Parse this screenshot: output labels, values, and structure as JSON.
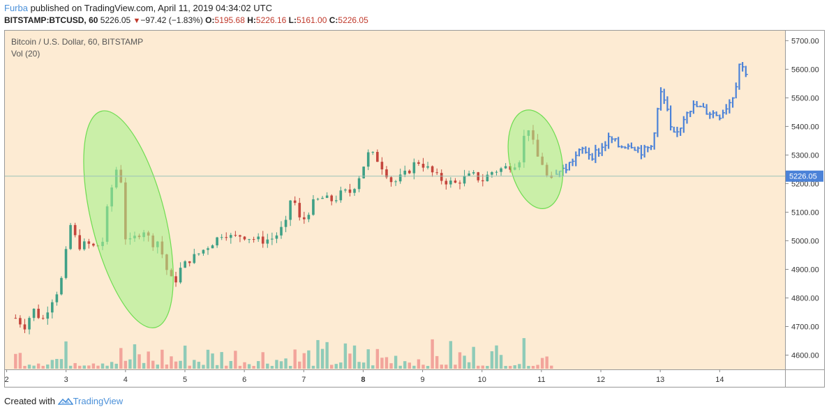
{
  "header": {
    "author": "Furba",
    "published_text": " published on TradingView.com, April 11, 2019 04:34:02 UTC",
    "symbol": "BITSTAMP:BTCUSD, 60",
    "last": "5226.05",
    "change": "−97.42 (−1.83%)",
    "o_label": "O:",
    "o_value": "5195.68",
    "h_label": "H:",
    "h_value": "5226.16",
    "l_label": "L:",
    "l_value": "5161.00",
    "c_label": "C:",
    "c_value": "5226.05",
    "down_glyph": "▼"
  },
  "legend": {
    "series_title": "Bitcoin / U.S. Dollar, 60, BITSTAMP",
    "volume_title": "Vol (20)"
  },
  "footer": {
    "created_with": "Created with ",
    "brand": "TradingView"
  },
  "colors": {
    "background": "#fdebd3",
    "up": "#3fa086",
    "down": "#c4453c",
    "vol_up": "#8fcbb8",
    "vol_down": "#f2a49b",
    "projection": "#4b82d8",
    "highlight_fill": "#a8f28c",
    "highlight_stroke": "#6fdc52",
    "price_tag": "#4b82d8"
  },
  "chart_data": {
    "type": "candlestick",
    "title": "Bitcoin / U.S. Dollar, 60, BITSTAMP",
    "x_ticks": [
      {
        "label": "2",
        "day": 2
      },
      {
        "label": "3",
        "day": 3
      },
      {
        "label": "4",
        "day": 4
      },
      {
        "label": "5",
        "day": 5
      },
      {
        "label": "6",
        "day": 6
      },
      {
        "label": "7",
        "day": 7
      },
      {
        "label": "8",
        "day": 8,
        "bold": true
      },
      {
        "label": "9",
        "day": 9
      },
      {
        "label": "10",
        "day": 10
      },
      {
        "label": "11",
        "day": 11
      },
      {
        "label": "12",
        "day": 12
      },
      {
        "label": "13",
        "day": 13
      },
      {
        "label": "14",
        "day": 14
      }
    ],
    "y_ticks": [
      4600,
      4700,
      4800,
      4900,
      5000,
      5100,
      5200,
      5300,
      5400,
      5500,
      5600,
      5700
    ],
    "y_tick_labels": [
      "4600.00",
      "4700.00",
      "4800.00",
      "4900.00",
      "5000.00",
      "5100.00",
      "5200.00",
      "5300.00",
      "5400.00",
      "5500.00",
      "5600.00",
      "5700.00"
    ],
    "ylim": [
      4550,
      5735
    ],
    "xlim": [
      1.97,
      15.1
    ],
    "last_price": 5226.05,
    "last_price_label": "5226.05",
    "price_path": [
      [
        2.15,
        4730
      ],
      [
        2.3,
        4700
      ],
      [
        2.45,
        4760
      ],
      [
        2.6,
        4720
      ],
      [
        2.75,
        4790
      ],
      [
        2.9,
        4840
      ],
      [
        3.0,
        4960
      ],
      [
        3.08,
        5060
      ],
      [
        3.2,
        4980
      ],
      [
        3.35,
        4990
      ],
      [
        3.5,
        4975
      ],
      [
        3.62,
        5000
      ],
      [
        3.72,
        5150
      ],
      [
        3.8,
        5210
      ],
      [
        3.88,
        5280
      ],
      [
        3.93,
        5200
      ],
      [
        3.98,
        5020
      ],
      [
        4.05,
        4990
      ],
      [
        4.15,
        5010
      ],
      [
        4.3,
        5040
      ],
      [
        4.45,
        4990
      ],
      [
        4.55,
        5000
      ],
      [
        4.65,
        4930
      ],
      [
        4.72,
        4880
      ],
      [
        4.82,
        4850
      ],
      [
        4.92,
        4900
      ],
      [
        5.05,
        4930
      ],
      [
        5.2,
        4950
      ],
      [
        5.35,
        4975
      ],
      [
        5.5,
        5000
      ],
      [
        5.65,
        5030
      ],
      [
        5.8,
        5010
      ],
      [
        5.95,
        5020
      ],
      [
        6.1,
        5010
      ],
      [
        6.3,
        5000
      ],
      [
        6.5,
        5010
      ],
      [
        6.7,
        5060
      ],
      [
        6.8,
        5170
      ],
      [
        6.88,
        5110
      ],
      [
        6.95,
        5060
      ],
      [
        7.05,
        5090
      ],
      [
        7.15,
        5130
      ],
      [
        7.3,
        5150
      ],
      [
        7.5,
        5140
      ],
      [
        7.65,
        5170
      ],
      [
        7.8,
        5170
      ],
      [
        7.92,
        5220
      ],
      [
        8.0,
        5260
      ],
      [
        8.1,
        5310
      ],
      [
        8.22,
        5290
      ],
      [
        8.35,
        5250
      ],
      [
        8.5,
        5200
      ],
      [
        8.62,
        5220
      ],
      [
        8.75,
        5240
      ],
      [
        8.9,
        5280
      ],
      [
        9.05,
        5260
      ],
      [
        9.2,
        5230
      ],
      [
        9.35,
        5210
      ],
      [
        9.55,
        5200
      ],
      [
        9.7,
        5220
      ],
      [
        9.85,
        5230
      ],
      [
        10.0,
        5210
      ],
      [
        10.15,
        5240
      ],
      [
        10.3,
        5250
      ],
      [
        10.45,
        5260
      ],
      [
        10.55,
        5270
      ],
      [
        10.65,
        5290
      ],
      [
        10.72,
        5380
      ],
      [
        10.8,
        5400
      ],
      [
        10.9,
        5300
      ],
      [
        11.0,
        5280
      ],
      [
        11.08,
        5230
      ],
      [
        11.15,
        5200
      ],
      [
        11.2,
        5220
      ]
    ],
    "projection_path": [
      [
        11.25,
        5240
      ],
      [
        11.4,
        5250
      ],
      [
        11.55,
        5290
      ],
      [
        11.7,
        5320
      ],
      [
        11.85,
        5300
      ],
      [
        12.0,
        5320
      ],
      [
        12.15,
        5360
      ],
      [
        12.3,
        5330
      ],
      [
        12.5,
        5340
      ],
      [
        12.7,
        5310
      ],
      [
        12.85,
        5330
      ],
      [
        12.95,
        5450
      ],
      [
        13.0,
        5520
      ],
      [
        13.1,
        5470
      ],
      [
        13.2,
        5360
      ],
      [
        13.3,
        5380
      ],
      [
        13.45,
        5460
      ],
      [
        13.6,
        5470
      ],
      [
        13.8,
        5450
      ],
      [
        14.0,
        5440
      ],
      [
        14.15,
        5480
      ],
      [
        14.25,
        5520
      ],
      [
        14.33,
        5620
      ],
      [
        14.4,
        5600
      ],
      [
        14.45,
        5590
      ]
    ],
    "volume": {
      "note": "relative bar heights of Vol (20) sub-pane",
      "values_scale": [
        0,
        100
      ]
    },
    "highlights": [
      {
        "cx_day": 4.05,
        "cy_price": 5075,
        "rx_days": 0.62,
        "ry_price": 390,
        "rotate": -14
      },
      {
        "cx_day": 10.9,
        "cy_price": 5285,
        "rx_days": 0.44,
        "ry_price": 175,
        "rotate": -11
      }
    ]
  }
}
